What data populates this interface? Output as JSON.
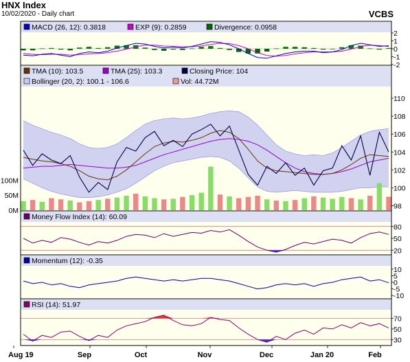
{
  "header": {
    "index_name": "HNX Index",
    "date_line": "10/02/2020 - Daily chart",
    "source": "VCBS"
  },
  "colors": {
    "panel_bg": "#ffffee",
    "legend_bg": "#dde0f4",
    "frame": "#000000",
    "macd": "#0000cc",
    "signal": "#cc00cc",
    "div_pos": "#008000",
    "div_neg": "#006600",
    "tma10": "#663300",
    "tma25": "#9900cc",
    "close": "#000044",
    "boll_fill": "#c8caf0",
    "boll_edge": "#8888dd",
    "vol_up": "#88dd66",
    "vol_down": "#ee8888",
    "mfi": "#660066",
    "mom": "#0000aa",
    "rsi": "#880066",
    "ob_fill": "#ee3333",
    "os_fill": "#3333ee",
    "ref_line": "#cc6666"
  },
  "legends": {
    "macd": [
      {
        "swatch": "#0000cc",
        "text": "MACD (26, 12): 0.3818"
      },
      {
        "swatch": "#cc00cc",
        "text": "EXP (9): 0.2859"
      },
      {
        "swatch": "#006600",
        "text": "Divergence: 0.0958"
      }
    ],
    "price_row1": [
      {
        "swatch": "#663300",
        "text": "TMA (10): 103.5"
      },
      {
        "swatch": "#9900cc",
        "text": "TMA (25): 103.3"
      },
      {
        "swatch": "#000044",
        "text": "Closing Price: 104"
      }
    ],
    "price_row2": [
      {
        "swatch": "#c8caf0",
        "text": "Bollinger (20, 2): 100.1 - 106.6"
      },
      {
        "swatch": "#ee9999",
        "text": "Vol: 44.72M"
      }
    ],
    "mfi": [
      {
        "swatch": "#660066",
        "text": "Money Flow Index (14): 60.09"
      }
    ],
    "momentum": [
      {
        "swatch": "#0000aa",
        "text": "Momentum (12): -0.35"
      }
    ],
    "rsi": [
      {
        "swatch": "#880066",
        "text": "RSI (14): 51.97"
      }
    ]
  },
  "x_axis_labels": [
    "Aug 19",
    "Sep",
    "Oct",
    "Nov",
    "Dec",
    "Jan 20",
    "Feb"
  ],
  "chart_data": [
    {
      "type": "bar",
      "title": "MACD (26, 12)",
      "yticks": [
        "2",
        "1",
        "0",
        "-1",
        "-2"
      ],
      "ylim": [
        -2,
        2
      ],
      "series": [
        {
          "name": "MACD (26, 12)",
          "type": "line",
          "values": [
            -0.8,
            -0.9,
            -0.7,
            -0.6,
            -0.8,
            -1.0,
            -0.6,
            -0.4,
            -0.5,
            -0.3,
            0.1,
            0.4,
            0.7,
            0.6,
            0.3,
            0.1,
            0.2,
            0.1,
            0.3,
            0.6,
            0.9,
            0.8,
            0.5,
            0.0,
            -0.6,
            -1.1,
            -1.2,
            -0.9,
            -0.6,
            -0.4,
            -0.3,
            -0.3,
            -0.5,
            -0.4,
            -0.1,
            0.4,
            0.7,
            0.5,
            0.3,
            0.38
          ]
        },
        {
          "name": "EXP (9)",
          "type": "line",
          "values": [
            -0.6,
            -0.7,
            -0.75,
            -0.7,
            -0.7,
            -0.8,
            -0.75,
            -0.65,
            -0.6,
            -0.5,
            -0.3,
            -0.05,
            0.25,
            0.45,
            0.45,
            0.35,
            0.3,
            0.25,
            0.25,
            0.35,
            0.55,
            0.7,
            0.65,
            0.4,
            0.0,
            -0.5,
            -0.85,
            -0.95,
            -0.85,
            -0.65,
            -0.5,
            -0.4,
            -0.4,
            -0.4,
            -0.3,
            -0.05,
            0.3,
            0.45,
            0.4,
            0.29
          ]
        },
        {
          "name": "Divergence",
          "type": "bar",
          "values": [
            -0.2,
            -0.2,
            0.05,
            0.1,
            -0.1,
            -0.2,
            0.15,
            0.25,
            0.1,
            0.2,
            0.4,
            0.45,
            0.45,
            0.15,
            -0.15,
            -0.25,
            -0.1,
            -0.15,
            0.05,
            0.25,
            0.35,
            0.1,
            -0.15,
            -0.4,
            -0.6,
            -0.6,
            -0.35,
            0.05,
            0.25,
            0.25,
            0.2,
            0.1,
            -0.1,
            0.0,
            0.2,
            0.45,
            0.4,
            0.05,
            -0.1,
            0.1
          ]
        }
      ]
    },
    {
      "type": "line",
      "title": "HNX Index price",
      "yticks": [
        "110",
        "108",
        "106",
        "104",
        "102",
        "100",
        "98"
      ],
      "ylim": [
        97.5,
        111
      ],
      "volume_ticks": [
        "100M",
        "50M",
        "0M"
      ],
      "volume_max_m": 160,
      "series": [
        {
          "name": "Closing Price",
          "values": [
            104.2,
            102.5,
            103.8,
            103.1,
            102.7,
            103.6,
            101.2,
            99.5,
            100.6,
            99.8,
            102.9,
            104.5,
            104.1,
            105.6,
            106.3,
            104.7,
            105.3,
            104.6,
            106.0,
            106.5,
            107.1,
            105.8,
            106.9,
            104.2,
            101.5,
            100.3,
            102.4,
            101.6,
            102.8,
            101.4,
            102.2,
            100.3,
            101.9,
            102.2,
            104.7,
            103.1,
            105.8,
            101.4,
            106.2,
            104.0
          ]
        },
        {
          "name": "TMA (10)",
          "values": [
            103.4,
            103.2,
            103.0,
            102.9,
            102.7,
            102.4,
            101.9,
            101.3,
            101.0,
            100.9,
            101.3,
            102.0,
            102.9,
            103.8,
            104.6,
            105.0,
            105.2,
            105.1,
            105.3,
            105.6,
            106.1,
            106.4,
            106.2,
            105.5,
            104.3,
            103.0,
            102.2,
            101.9,
            101.8,
            101.7,
            101.6,
            101.5,
            101.5,
            101.6,
            102.0,
            102.6,
            103.3,
            103.7,
            103.6,
            103.5
          ]
        },
        {
          "name": "TMA (25)",
          "values": [
            102.2,
            102.3,
            102.4,
            102.4,
            102.5,
            102.6,
            102.5,
            102.4,
            102.3,
            102.2,
            102.2,
            102.3,
            102.5,
            102.9,
            103.3,
            103.7,
            104.0,
            104.3,
            104.6,
            104.9,
            105.2,
            105.4,
            105.5,
            105.4,
            105.2,
            104.8,
            104.2,
            103.5,
            102.8,
            102.2,
            101.8,
            101.6,
            101.5,
            101.6,
            101.8,
            102.1,
            102.5,
            102.9,
            103.1,
            103.3
          ]
        },
        {
          "name": "Bollinger (20, 2) upper",
          "values": [
            107.5,
            107.0,
            106.6,
            106.2,
            105.9,
            105.5,
            104.9,
            104.5,
            104.4,
            104.5,
            104.9,
            105.6,
            106.4,
            107.1,
            107.5,
            107.7,
            107.8,
            107.7,
            107.8,
            108.0,
            108.3,
            108.5,
            108.6,
            108.5,
            107.9,
            107.0,
            105.9,
            104.8,
            104.1,
            103.8,
            103.6,
            103.7,
            103.6,
            103.9,
            104.5,
            105.2,
            105.9,
            106.3,
            106.5,
            106.6
          ]
        },
        {
          "name": "Bollinger (20, 2) lower",
          "values": [
            101.0,
            100.5,
            100.0,
            99.6,
            99.3,
            99.1,
            98.9,
            98.9,
            99.0,
            99.2,
            99.5,
            99.9,
            100.5,
            101.2,
            101.9,
            102.4,
            102.8,
            103.0,
            103.2,
            103.4,
            103.5,
            103.4,
            103.0,
            102.2,
            101.1,
            100.1,
            99.6,
            99.5,
            99.6,
            99.7,
            99.6,
            99.5,
            99.5,
            99.5,
            99.6,
            99.8,
            100.0,
            100.0,
            100.1,
            100.1
          ]
        }
      ],
      "volume_m": [
        30,
        34,
        28,
        40,
        36,
        32,
        26,
        30,
        34,
        38,
        42,
        48,
        55,
        46,
        40,
        36,
        38,
        44,
        50,
        58,
        145,
        52,
        46,
        40,
        44,
        48,
        36,
        32,
        30,
        34,
        40,
        46,
        42,
        38,
        44,
        40,
        36,
        48,
        90,
        44.72
      ],
      "volume_down": [
        false,
        true,
        false,
        true,
        true,
        false,
        true,
        true,
        false,
        true,
        false,
        false,
        true,
        false,
        false,
        true,
        false,
        true,
        false,
        false,
        false,
        true,
        false,
        true,
        true,
        true,
        false,
        true,
        false,
        true,
        false,
        true,
        false,
        false,
        false,
        true,
        false,
        true,
        false,
        true
      ]
    },
    {
      "type": "line",
      "title": "Money Flow Index (14)",
      "yticks": [
        "80",
        "50",
        "20"
      ],
      "ylim": [
        10,
        90
      ],
      "reference_lines": [
        80,
        20
      ],
      "series": [
        {
          "name": "Money Flow Index (14)",
          "values": [
            50,
            38,
            45,
            40,
            52,
            48,
            40,
            33,
            42,
            38,
            45,
            55,
            60,
            58,
            52,
            62,
            55,
            60,
            65,
            63,
            70,
            66,
            72,
            58,
            42,
            28,
            20,
            15,
            22,
            32,
            40,
            36,
            42,
            48,
            45,
            38,
            52,
            62,
            66,
            60.09
          ]
        }
      ]
    },
    {
      "type": "line",
      "title": "Momentum (12)",
      "yticks": [
        "10",
        "5",
        "0",
        "-5",
        "-10"
      ],
      "ylim": [
        -12,
        12
      ],
      "series": [
        {
          "name": "Momentum (12)",
          "values": [
            1,
            -1,
            0,
            -2,
            -1,
            -3,
            -4,
            -2,
            -1,
            0,
            1,
            3,
            4,
            3,
            2,
            1,
            2,
            1,
            2,
            3,
            3,
            2,
            1,
            -1,
            -3,
            -5,
            -4,
            -2,
            -1,
            -2,
            -1,
            -3,
            -1,
            0,
            2,
            3,
            4,
            1,
            2,
            -0.35
          ]
        }
      ]
    },
    {
      "type": "line",
      "title": "RSI (14)",
      "yticks": [
        "70",
        "50",
        "30"
      ],
      "ylim": [
        20,
        85
      ],
      "reference_lines": [
        70,
        30
      ],
      "series": [
        {
          "name": "RSI (14)",
          "values": [
            40,
            27,
            38,
            34,
            44,
            46,
            36,
            28,
            38,
            34,
            48,
            56,
            60,
            64,
            72,
            76,
            66,
            58,
            56,
            60,
            72,
            68,
            66,
            52,
            40,
            30,
            25,
            36,
            30,
            42,
            48,
            40,
            52,
            50,
            58,
            52,
            62,
            56,
            60,
            51.97
          ]
        }
      ]
    }
  ]
}
